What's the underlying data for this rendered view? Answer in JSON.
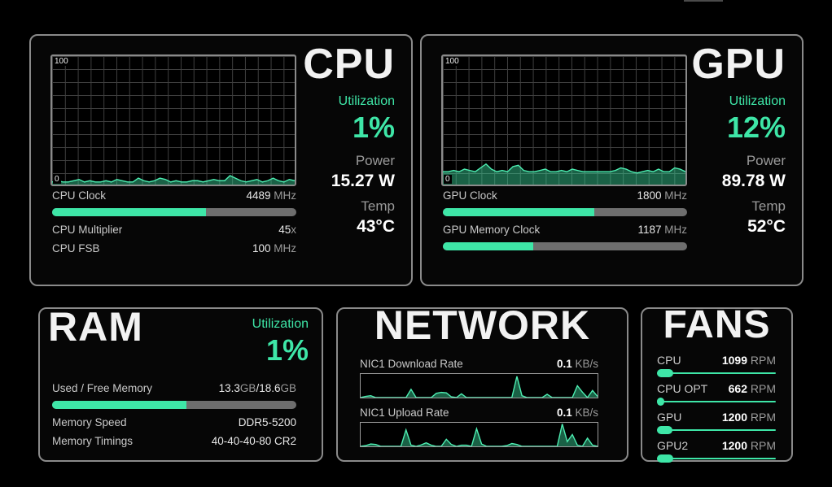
{
  "theme": {
    "accent": "#3ee6a7",
    "accent_line": "#4deeb2",
    "accent_fill": "rgba(62,230,167,0.42)",
    "panel_border": "#8a8a8a",
    "background": "#000000"
  },
  "cpu": {
    "title": "CPU",
    "graph": {
      "ymax_label": "100",
      "ymin_label": "0",
      "ymax": 100,
      "history": [
        2,
        3,
        2,
        2,
        3,
        4,
        2,
        3,
        2,
        2,
        3,
        2,
        4,
        3,
        2,
        2,
        5,
        3,
        2,
        3,
        5,
        4,
        2,
        3,
        2,
        2,
        3,
        3,
        2,
        3,
        4,
        3,
        3,
        7,
        5,
        3,
        2,
        3,
        4,
        2,
        3,
        5,
        3,
        2,
        4,
        3
      ]
    },
    "stats": {
      "utilization_label": "Utilization",
      "utilization_value": "1%",
      "power_label": "Power",
      "power_value": "15.27 W",
      "temp_label": "Temp",
      "temp_value": "43°C"
    },
    "rows": [
      {
        "label": "CPU Clock",
        "value": [
          {
            "t": "4489"
          },
          {
            "t": " MHz",
            "u": true
          }
        ],
        "bar": 63
      },
      {
        "label": "CPU Multiplier",
        "value": [
          {
            "t": "45"
          },
          {
            "t": "x",
            "u": true
          }
        ]
      },
      {
        "label": "CPU FSB",
        "value": [
          {
            "t": "100"
          },
          {
            "t": " MHz",
            "u": true
          }
        ]
      }
    ]
  },
  "gpu": {
    "title": "GPU",
    "graph": {
      "ymax_label": "100",
      "ymin_label": "0",
      "ymax": 100,
      "history": [
        10,
        10,
        11,
        10,
        12,
        11,
        10,
        13,
        16,
        12,
        10,
        11,
        10,
        14,
        15,
        11,
        10,
        10,
        11,
        12,
        10,
        10,
        11,
        10,
        12,
        11,
        10,
        10,
        10,
        10,
        10,
        10,
        11,
        13,
        12,
        10,
        9,
        10,
        11,
        10,
        12,
        10,
        10,
        13,
        12,
        10
      ]
    },
    "stats": {
      "utilization_label": "Utilization",
      "utilization_value": "12%",
      "power_label": "Power",
      "power_value": "89.78 W",
      "temp_label": "Temp",
      "temp_value": "52°C"
    },
    "rows": [
      {
        "label": "GPU Clock",
        "value": [
          {
            "t": "1800"
          },
          {
            "t": " MHz",
            "u": true
          }
        ],
        "bar": 62
      },
      {
        "label": "GPU Memory Clock",
        "value": [
          {
            "t": "1187"
          },
          {
            "t": " MHz",
            "u": true
          }
        ],
        "bar": 37
      }
    ]
  },
  "ram": {
    "title": "RAM",
    "stats": {
      "utilization_label": "Utilization",
      "utilization_value": "1%"
    },
    "rows": [
      {
        "label": "Used / Free Memory",
        "value": [
          {
            "t": "13.3"
          },
          {
            "t": "GB",
            "u": true
          },
          {
            "t": "/"
          },
          {
            "t": "18.6"
          },
          {
            "t": "GB",
            "u": true
          }
        ],
        "bar": 55
      },
      {
        "label": "Memory Speed",
        "value": [
          {
            "t": "DDR5-5200"
          }
        ]
      },
      {
        "label": "Memory Timings",
        "value": [
          {
            "t": "40-40-40-80 CR2"
          }
        ]
      }
    ]
  },
  "network": {
    "title": "NETWORK",
    "graph_ymax": 10,
    "nics": [
      {
        "label": "NIC1 Download Rate",
        "rate": [
          {
            "t": "0.1",
            "b": true
          },
          {
            "t": " KB/s",
            "u": true
          }
        ],
        "history": [
          0,
          0.5,
          0.8,
          0,
          0,
          0,
          0,
          0,
          0,
          0,
          3.5,
          0,
          0,
          0,
          0,
          1.8,
          2.2,
          2,
          0.3,
          0,
          1.6,
          0,
          0,
          0,
          0,
          0,
          0,
          0,
          0,
          0,
          0,
          9,
          0.8,
          0,
          0,
          0,
          0,
          1.4,
          0,
          0,
          0,
          0,
          0,
          5,
          2.3,
          0,
          3,
          0.5
        ]
      },
      {
        "label": "NIC1 Upload Rate",
        "rate": [
          {
            "t": "0.1",
            "b": true
          },
          {
            "t": " KB/s",
            "u": true
          }
        ],
        "history": [
          0,
          0.3,
          1,
          0.8,
          0,
          0,
          0,
          0,
          0,
          7,
          0.5,
          0,
          0.6,
          1.5,
          0.5,
          0,
          0,
          3,
          0.8,
          0,
          0.5,
          0.5,
          0,
          7.5,
          1,
          0,
          0,
          0,
          0,
          0.3,
          1.2,
          0.8,
          0,
          0,
          0,
          0,
          0,
          0,
          0,
          0,
          9.5,
          2,
          5,
          0.5,
          0,
          3.5,
          0.5,
          0
        ]
      }
    ]
  },
  "fans": {
    "title": "FANS",
    "items": [
      {
        "label": "CPU",
        "value": [
          {
            "t": "1099",
            "b": true
          },
          {
            "t": " RPM",
            "u": true
          }
        ],
        "pct": 14
      },
      {
        "label": "CPU OPT",
        "value": [
          {
            "t": "662",
            "b": true
          },
          {
            "t": " RPM",
            "u": true
          }
        ],
        "pct": 6
      },
      {
        "label": "GPU",
        "value": [
          {
            "t": "1200",
            "b": true
          },
          {
            "t": " RPM",
            "u": true
          }
        ],
        "pct": 13
      },
      {
        "label": "GPU2",
        "value": [
          {
            "t": "1200",
            "b": true
          },
          {
            "t": " RPM",
            "u": true
          }
        ],
        "pct": 14
      }
    ]
  }
}
